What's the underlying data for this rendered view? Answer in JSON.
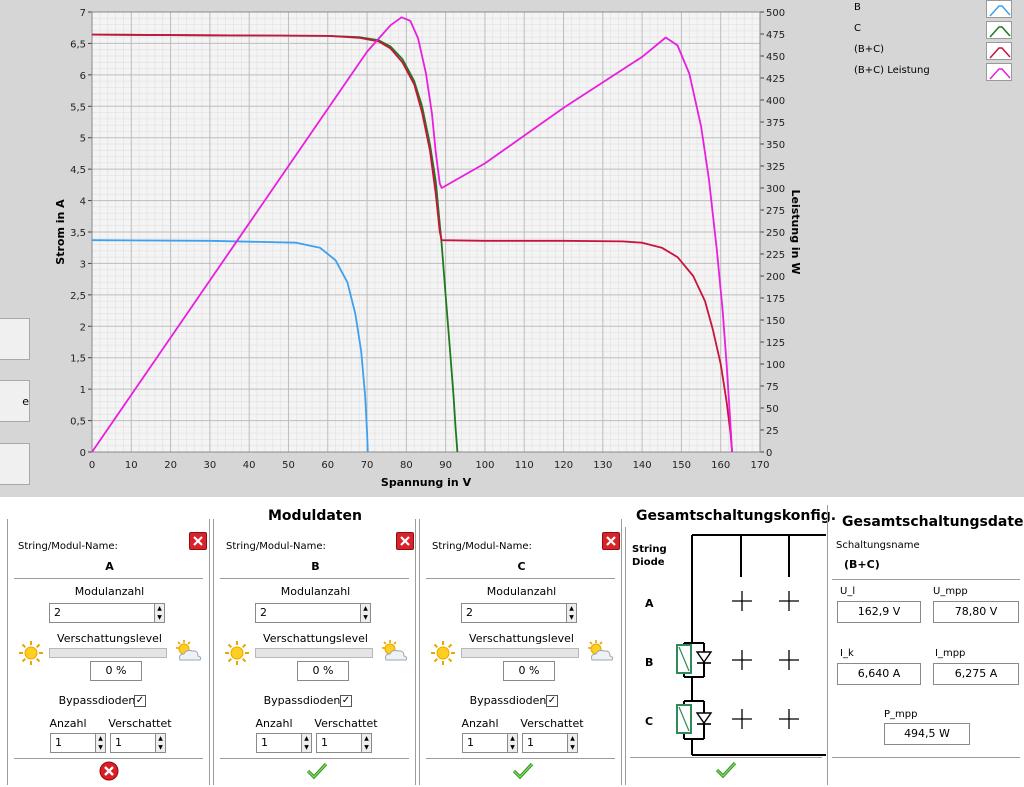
{
  "chart_data": {
    "type": "line",
    "xlabel": "Spannung in V",
    "ylabel": "Strom in A",
    "y2label": "Leistung in W",
    "xlim": [
      0,
      170
    ],
    "ylim": [
      0,
      7
    ],
    "y2lim": [
      0,
      500
    ],
    "x_ticks": [
      "0",
      "10",
      "20",
      "30",
      "40",
      "50",
      "60",
      "70",
      "80",
      "90",
      "100",
      "110",
      "120",
      "130",
      "140",
      "150",
      "160",
      "170"
    ],
    "y_ticks": [
      "0",
      "0,5",
      "1",
      "1,5",
      "2",
      "2,5",
      "3",
      "3,5",
      "4",
      "4,5",
      "5",
      "5,5",
      "6",
      "6,5",
      "7"
    ],
    "y2_ticks": [
      "0",
      "25",
      "50",
      "75",
      "100",
      "125",
      "150",
      "175",
      "200",
      "225",
      "250",
      "275",
      "300",
      "325",
      "350",
      "375",
      "400",
      "425",
      "450",
      "475",
      "500"
    ],
    "grid": true,
    "legend_position": "right",
    "series": [
      {
        "name": "B",
        "color": "#3ea0ee",
        "axis": "left",
        "x": [
          0,
          30,
          52,
          58,
          62,
          65,
          67,
          68.5,
          69.5,
          70,
          70.2
        ],
        "y": [
          3.37,
          3.36,
          3.33,
          3.25,
          3.05,
          2.7,
          2.2,
          1.6,
          0.9,
          0.3,
          0
        ]
      },
      {
        "name": "C",
        "color": "#1d7a1d",
        "axis": "left",
        "x": [
          0,
          30,
          60,
          68,
          73,
          76,
          79,
          82,
          84,
          86,
          87.5,
          89,
          90,
          91,
          92,
          92.5,
          93
        ],
        "y": [
          6.64,
          6.63,
          6.62,
          6.6,
          6.55,
          6.45,
          6.25,
          5.9,
          5.5,
          4.9,
          4.3,
          3.3,
          2.5,
          1.7,
          0.9,
          0.4,
          0
        ]
      },
      {
        "name": "(B+C)",
        "color": "#c8143c",
        "axis": "left",
        "x": [
          0,
          30,
          60,
          68,
          73,
          76,
          79,
          82,
          84,
          86,
          87.5,
          88.5,
          89,
          100,
          120,
          135,
          140,
          145,
          149,
          153,
          156,
          158,
          160,
          161.5,
          162.5,
          162.9
        ],
        "y": [
          6.64,
          6.63,
          6.62,
          6.59,
          6.53,
          6.42,
          6.2,
          5.85,
          5.4,
          4.8,
          4.1,
          3.5,
          3.37,
          3.36,
          3.36,
          3.35,
          3.33,
          3.25,
          3.1,
          2.8,
          2.4,
          1.95,
          1.4,
          0.8,
          0.3,
          0
        ]
      },
      {
        "name": "(B+C)  Leistung",
        "color": "#e81fe0",
        "axis": "right",
        "x": [
          0,
          70,
          76,
          78.8,
          81,
          83,
          85,
          86.5,
          87.5,
          88.5,
          89,
          100,
          120,
          140,
          146,
          149,
          152,
          155,
          157,
          159,
          160.5,
          161.5,
          162.3,
          162.9
        ],
        "y": [
          0,
          455,
          485,
          494,
          490,
          470,
          430,
          385,
          340,
          305,
          300,
          328,
          391,
          449,
          471,
          462,
          430,
          370,
          310,
          230,
          160,
          100,
          45,
          0
        ]
      }
    ]
  },
  "side_buttons": [
    "",
    "e",
    ""
  ],
  "moduldaten": {
    "title": "Moduldaten",
    "modules": [
      {
        "name_label": "String/Modul-Name:",
        "name": "A",
        "count_label": "Modulanzahl",
        "count": "2",
        "shade_label": "Verschattungslevel",
        "shade": "0 %",
        "shade_level": 0,
        "bypass_label": "Bypassdioden",
        "bypass_checked": "✓",
        "anzahl_label": "Anzahl",
        "verschattet_label": "Verschattet",
        "anzahl": "1",
        "verschattet": "1",
        "status": "error"
      },
      {
        "name_label": "String/Modul-Name:",
        "name": "B",
        "count_label": "Modulanzahl",
        "count": "2",
        "shade_label": "Verschattungslevel",
        "shade": "0 %",
        "shade_level": 0,
        "bypass_label": "Bypassdioden",
        "bypass_checked": "✓",
        "anzahl_label": "Anzahl",
        "verschattet_label": "Verschattet",
        "anzahl": "1",
        "verschattet": "1",
        "status": "ok"
      },
      {
        "name_label": "String/Modul-Name:",
        "name": "C",
        "count_label": "Modulanzahl",
        "count": "2",
        "shade_label": "Verschattungslevel",
        "shade": "0 %",
        "shade_level": 0,
        "bypass_label": "Bypassdioden",
        "bypass_checked": "✓",
        "anzahl_label": "Anzahl",
        "verschattet_label": "Verschattet",
        "anzahl": "1",
        "verschattet": "1",
        "status": "ok"
      }
    ]
  },
  "konfig": {
    "title": "Gesamtschaltungskonfig.",
    "header": [
      "String",
      "Diode"
    ],
    "rows": [
      "A",
      "B",
      "C"
    ],
    "status": "ok"
  },
  "daten": {
    "title": "Gesamtschaltungsdaten",
    "name_label": "Schaltungsname",
    "name": "(B+C)",
    "u_l_label": "U_l",
    "u_l": "162,9 V",
    "u_mpp_label": "U_mpp",
    "u_mpp": "78,80 V",
    "i_k_label": "I_k",
    "i_k": "6,640 A",
    "i_mpp_label": "I_mpp",
    "i_mpp": "6,275 A",
    "p_mpp_label": "P_mpp",
    "p_mpp": "494,5 W"
  }
}
